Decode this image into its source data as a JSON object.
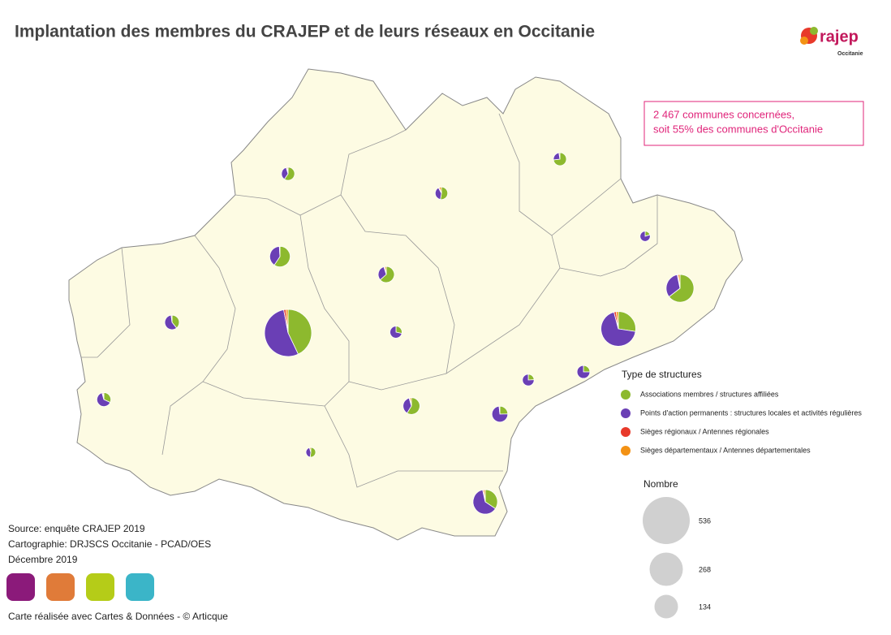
{
  "header": {
    "title": "Implantation des membres du CRAJEP et de leurs réseaux en Occitanie"
  },
  "logo": {
    "word": "rajep",
    "region": "Occitanie"
  },
  "note": {
    "line1": "2 467 communes concernées,",
    "line2": "soit 55% des communes d'Occitanie"
  },
  "legend": {
    "title": "Type de structures",
    "types": [
      {
        "name": "Associations membres / structures affiliées",
        "color": "#8db92e"
      },
      {
        "name": "Points d'action permanents : structures locales et activités régulières",
        "color": "#6a3fb5"
      },
      {
        "name": "Sièges régionaux / Antennes régionales",
        "color": "#e8392a"
      },
      {
        "name": "Sièges départementaux / Antennes départementales",
        "color": "#f39214"
      }
    ],
    "size_title": "Nombre",
    "sizes": [
      536,
      268,
      134
    ]
  },
  "symbols": [
    {
      "counts": [
        230,
        290,
        8,
        8
      ]
    },
    {
      "counts": [
        80,
        200,
        6,
        6
      ]
    },
    {
      "counts": [
        120,
        60,
        2,
        4
      ]
    },
    {
      "counts": [
        50,
        90,
        2,
        3
      ]
    },
    {
      "counts": [
        40,
        20,
        1,
        2
      ]
    },
    {
      "counts": [
        60,
        40,
        0,
        1
      ]
    },
    {
      "counts": [
        15,
        30,
        1,
        1
      ]
    },
    {
      "counts": [
        20,
        30,
        0,
        1
      ]
    },
    {
      "counts": [
        40,
        25,
        1,
        2
      ]
    },
    {
      "counts": [
        15,
        45,
        0,
        1
      ]
    },
    {
      "counts": [
        12,
        10,
        0,
        1
      ]
    },
    {
      "counts": [
        25,
        15,
        1,
        1
      ]
    },
    {
      "counts": [
        20,
        15,
        1,
        2
      ]
    },
    {
      "counts": [
        30,
        10,
        0,
        1
      ]
    },
    {
      "counts": [
        10,
        30,
        0,
        0
      ]
    },
    {
      "counts": [
        10,
        25,
        0,
        0
      ]
    },
    {
      "counts": [
        8,
        25,
        0,
        0
      ]
    },
    {
      "counts": [
        5,
        20,
        0,
        0
      ]
    }
  ],
  "footer": {
    "source": "Source: enquête CRAJEP 2019",
    "cartography": "Cartographie: DRJSCS Occitanie - PCAD/OES",
    "date": "Décembre 2019",
    "credit": "Carte réalisée avec Cartes & Données - © Articque"
  }
}
